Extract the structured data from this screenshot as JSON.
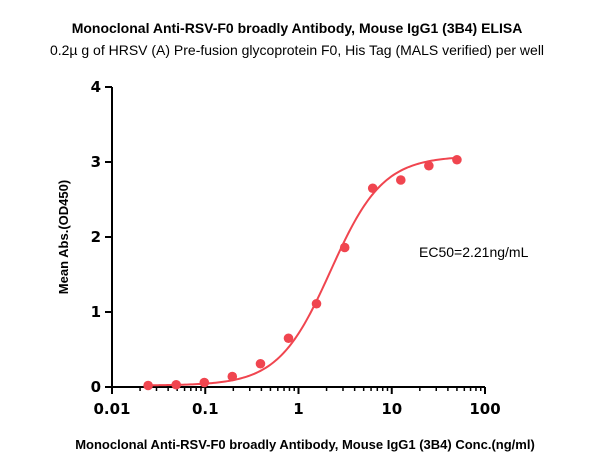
{
  "chart_data": {
    "type": "scatter",
    "title": "Monoclonal Anti-RSV-F0 broadly Antibody, Mouse IgG1 (3B4) ELISA",
    "subtitle": "0.2µ g of HRSV (A) Pre-fusion glycoprotein F0, His Tag (MALS verified) per well",
    "xlabel": "Monoclonal Anti-RSV-F0 broadly Antibody, Mouse IgG1 (3B4) Conc.(ng/ml)",
    "ylabel": "Mean Abs.(OD450)",
    "x_scale": "log",
    "xlim": [
      0.01,
      100
    ],
    "ylim": [
      0,
      4
    ],
    "x_ticks": [
      "0.01",
      "0.1",
      "1",
      "10",
      "100"
    ],
    "y_ticks": [
      "0",
      "1",
      "2",
      "3",
      "4"
    ],
    "grid": false,
    "color": "#f0454f",
    "series": [
      {
        "x": [
          0.0244,
          0.0488,
          0.0977,
          0.195,
          0.391,
          0.781,
          1.56,
          3.13,
          6.25,
          12.5,
          25,
          50
        ],
        "y": [
          0.02,
          0.03,
          0.06,
          0.14,
          0.31,
          0.65,
          1.11,
          1.86,
          2.65,
          2.76,
          2.95,
          3.03
        ]
      }
    ],
    "fit_curve": {
      "model": "4PL",
      "bottom": 0.02,
      "top": 3.08,
      "ec50": 2.21,
      "hill": 1.55
    },
    "annotations": [
      "EC50=2.21ng/mL"
    ]
  }
}
